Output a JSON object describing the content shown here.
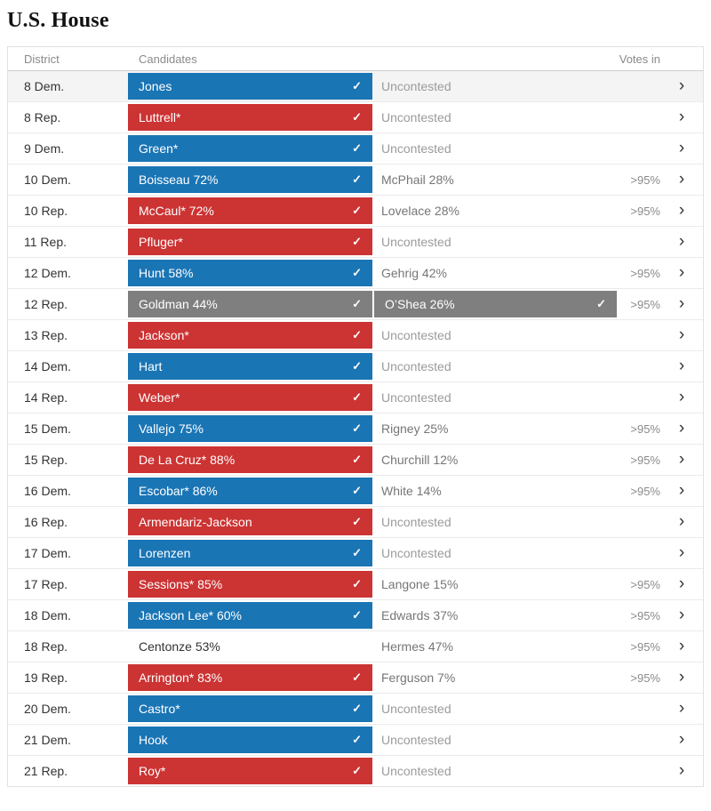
{
  "page": {
    "title": "U.S. House"
  },
  "colors": {
    "dem": "#1a75b5",
    "rep": "#cc3333",
    "runoff": "#7f7f7f"
  },
  "icons": {
    "check": "✓",
    "chevron": "›"
  },
  "table": {
    "headers": {
      "district": "District",
      "candidates": "Candidates",
      "votes_in": "Votes in"
    },
    "rows": [
      {
        "district": "8 Dem.",
        "candidate": "Jones",
        "party": "dem",
        "checked": true,
        "opponent": "Uncontested",
        "opponent_bar": false,
        "opponent_checked": false,
        "votes_in": "",
        "highlight": true
      },
      {
        "district": "8 Rep.",
        "candidate": "Luttrell*",
        "party": "rep",
        "checked": true,
        "opponent": "Uncontested",
        "opponent_bar": false,
        "opponent_checked": false,
        "votes_in": "",
        "highlight": false
      },
      {
        "district": "9 Dem.",
        "candidate": "Green*",
        "party": "dem",
        "checked": true,
        "opponent": "Uncontested",
        "opponent_bar": false,
        "opponent_checked": false,
        "votes_in": "",
        "highlight": false
      },
      {
        "district": "10 Dem.",
        "candidate": "Boisseau 72%",
        "party": "dem",
        "checked": true,
        "opponent": "McPhail 28%",
        "opponent_bar": false,
        "opponent_checked": false,
        "votes_in": ">95%",
        "highlight": false
      },
      {
        "district": "10 Rep.",
        "candidate": "McCaul* 72%",
        "party": "rep",
        "checked": true,
        "opponent": "Lovelace 28%",
        "opponent_bar": false,
        "opponent_checked": false,
        "votes_in": ">95%",
        "highlight": false
      },
      {
        "district": "11 Rep.",
        "candidate": "Pfluger*",
        "party": "rep",
        "checked": true,
        "opponent": "Uncontested",
        "opponent_bar": false,
        "opponent_checked": false,
        "votes_in": "",
        "highlight": false
      },
      {
        "district": "12 Dem.",
        "candidate": "Hunt 58%",
        "party": "dem",
        "checked": true,
        "opponent": "Gehrig 42%",
        "opponent_bar": false,
        "opponent_checked": false,
        "votes_in": ">95%",
        "highlight": false
      },
      {
        "district": "12 Rep.",
        "candidate": "Goldman 44%",
        "party": "runoff",
        "checked": true,
        "opponent": "O’Shea 26%",
        "opponent_bar": true,
        "opponent_checked": true,
        "votes_in": ">95%",
        "highlight": false
      },
      {
        "district": "13 Rep.",
        "candidate": "Jackson*",
        "party": "rep",
        "checked": true,
        "opponent": "Uncontested",
        "opponent_bar": false,
        "opponent_checked": false,
        "votes_in": "",
        "highlight": false
      },
      {
        "district": "14 Dem.",
        "candidate": "Hart",
        "party": "dem",
        "checked": true,
        "opponent": "Uncontested",
        "opponent_bar": false,
        "opponent_checked": false,
        "votes_in": "",
        "highlight": false
      },
      {
        "district": "14 Rep.",
        "candidate": "Weber*",
        "party": "rep",
        "checked": true,
        "opponent": "Uncontested",
        "opponent_bar": false,
        "opponent_checked": false,
        "votes_in": "",
        "highlight": false
      },
      {
        "district": "15 Dem.",
        "candidate": "Vallejo 75%",
        "party": "dem",
        "checked": true,
        "opponent": "Rigney 25%",
        "opponent_bar": false,
        "opponent_checked": false,
        "votes_in": ">95%",
        "highlight": false
      },
      {
        "district": "15 Rep.",
        "candidate": "De La Cruz* 88%",
        "party": "rep",
        "checked": true,
        "opponent": "Churchill 12%",
        "opponent_bar": false,
        "opponent_checked": false,
        "votes_in": ">95%",
        "highlight": false
      },
      {
        "district": "16 Dem.",
        "candidate": "Escobar* 86%",
        "party": "dem",
        "checked": true,
        "opponent": "White 14%",
        "opponent_bar": false,
        "opponent_checked": false,
        "votes_in": ">95%",
        "highlight": false
      },
      {
        "district": "16 Rep.",
        "candidate": "Armendariz-Jackson",
        "party": "rep",
        "checked": true,
        "opponent": "Uncontested",
        "opponent_bar": false,
        "opponent_checked": false,
        "votes_in": "",
        "highlight": false
      },
      {
        "district": "17 Dem.",
        "candidate": "Lorenzen",
        "party": "dem",
        "checked": true,
        "opponent": "Uncontested",
        "opponent_bar": false,
        "opponent_checked": false,
        "votes_in": "",
        "highlight": false
      },
      {
        "district": "17 Rep.",
        "candidate": "Sessions* 85%",
        "party": "rep",
        "checked": true,
        "opponent": "Langone 15%",
        "opponent_bar": false,
        "opponent_checked": false,
        "votes_in": ">95%",
        "highlight": false
      },
      {
        "district": "18 Dem.",
        "candidate": "Jackson Lee* 60%",
        "party": "dem",
        "checked": true,
        "opponent": "Edwards 37%",
        "opponent_bar": false,
        "opponent_checked": false,
        "votes_in": ">95%",
        "highlight": false
      },
      {
        "district": "18 Rep.",
        "candidate": "Centonze 53%",
        "party": "none",
        "checked": false,
        "opponent": "Hermes 47%",
        "opponent_bar": false,
        "opponent_checked": false,
        "votes_in": ">95%",
        "highlight": false
      },
      {
        "district": "19 Rep.",
        "candidate": "Arrington* 83%",
        "party": "rep",
        "checked": true,
        "opponent": "Ferguson 7%",
        "opponent_bar": false,
        "opponent_checked": false,
        "votes_in": ">95%",
        "highlight": false
      },
      {
        "district": "20 Dem.",
        "candidate": "Castro*",
        "party": "dem",
        "checked": true,
        "opponent": "Uncontested",
        "opponent_bar": false,
        "opponent_checked": false,
        "votes_in": "",
        "highlight": false
      },
      {
        "district": "21 Dem.",
        "candidate": "Hook",
        "party": "dem",
        "checked": true,
        "opponent": "Uncontested",
        "opponent_bar": false,
        "opponent_checked": false,
        "votes_in": "",
        "highlight": false
      },
      {
        "district": "21 Rep.",
        "candidate": "Roy*",
        "party": "rep",
        "checked": true,
        "opponent": "Uncontested",
        "opponent_bar": false,
        "opponent_checked": false,
        "votes_in": "",
        "highlight": false
      }
    ]
  }
}
